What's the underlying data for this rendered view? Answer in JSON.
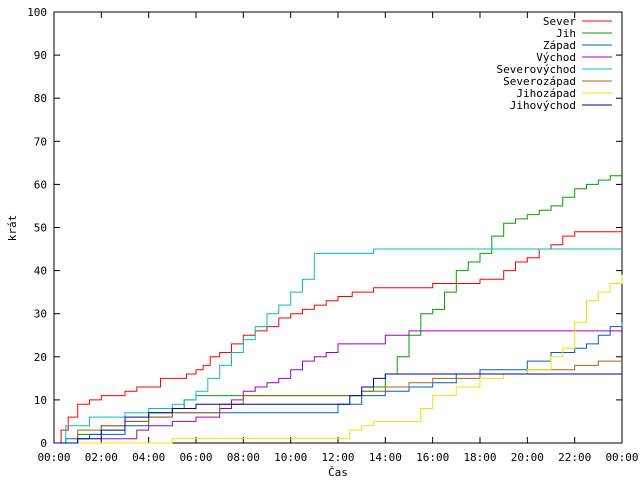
{
  "chart_data": {
    "type": "line",
    "title": "",
    "xlabel": "Čas",
    "ylabel": "krát",
    "xlim": [
      0,
      24
    ],
    "ylim": [
      0,
      100
    ],
    "x_ticks": [
      "00:00",
      "02:00",
      "04:00",
      "06:00",
      "08:00",
      "10:00",
      "12:00",
      "14:00",
      "16:00",
      "18:00",
      "20:00",
      "22:00",
      "00:00"
    ],
    "y_ticks": [
      0,
      10,
      20,
      30,
      40,
      50,
      60,
      70,
      80,
      90,
      100
    ],
    "grid": false,
    "legend_position": "top-right",
    "step": true,
    "series": [
      {
        "name": "Sever",
        "color": "#ff0000",
        "x": [
          0,
          0.3,
          0.6,
          1.0,
          1.5,
          2.0,
          3.0,
          3.5,
          4.5,
          5.0,
          5.6,
          6.0,
          6.3,
          6.6,
          7.0,
          7.5,
          8.0,
          8.5,
          9.0,
          9.5,
          10.0,
          10.5,
          11.0,
          11.5,
          12.0,
          12.6,
          13.5,
          15.0,
          16.0,
          17.0,
          18.0,
          19.0,
          19.5,
          20.0,
          20.5,
          21.0,
          21.5,
          22.0,
          24.0
        ],
        "y": [
          0,
          3,
          6,
          9,
          10,
          11,
          12,
          13,
          15,
          15,
          16,
          17,
          18,
          20,
          21,
          23,
          25,
          26,
          27,
          29,
          30,
          31,
          32,
          33,
          34,
          35,
          36,
          36,
          37,
          37,
          38,
          40,
          42,
          43,
          45,
          46,
          48,
          49,
          49
        ]
      },
      {
        "name": "Jih",
        "color": "#00a000",
        "x": [
          0,
          1.0,
          2.0,
          3.0,
          4.0,
          5.0,
          5.5,
          6.0,
          8.0,
          10.0,
          12.0,
          13.0,
          13.5,
          14.0,
          14.5,
          15.0,
          15.5,
          16.0,
          16.5,
          17.0,
          17.5,
          18.0,
          18.5,
          19.0,
          19.5,
          20.0,
          20.5,
          21.0,
          21.5,
          22.0,
          22.5,
          23.0,
          23.5,
          24.0
        ],
        "y": [
          0,
          2,
          4,
          5,
          7,
          8,
          10,
          11,
          11,
          11,
          11,
          12,
          13,
          16,
          20,
          25,
          30,
          31,
          35,
          40,
          42,
          44,
          48,
          51,
          52,
          53,
          54,
          55,
          57,
          59,
          60,
          61,
          62,
          62
        ]
      },
      {
        "name": "Západ",
        "color": "#0060c0",
        "x": [
          0,
          0.5,
          1.5,
          3.0,
          4.0,
          5.0,
          8.0,
          10.0,
          11.0,
          12.0,
          13.0,
          14.0,
          15.0,
          16.0,
          17.0,
          18.0,
          19.0,
          20.0,
          21.0,
          22.0,
          22.5,
          23.0,
          23.5,
          24.0
        ],
        "y": [
          0,
          1,
          2,
          4,
          6,
          7,
          7,
          7,
          7,
          9,
          11,
          12,
          13,
          14,
          16,
          17,
          17,
          19,
          21,
          22,
          23,
          25,
          27,
          28
        ]
      },
      {
        "name": "Východ",
        "color": "#a000c0",
        "x": [
          0,
          2.0,
          3.5,
          4.0,
          5.0,
          6.0,
          7.0,
          7.5,
          8.0,
          8.5,
          9.0,
          9.5,
          10.0,
          10.5,
          11.0,
          11.5,
          12.0,
          13.0,
          14.0,
          14.5,
          15.0,
          16.0,
          24.0
        ],
        "y": [
          0,
          1,
          3,
          4,
          5,
          6,
          8,
          10,
          12,
          13,
          14,
          15,
          17,
          19,
          20,
          21,
          23,
          23,
          25,
          25,
          26,
          26,
          26
        ]
      },
      {
        "name": "Severovýchod",
        "color": "#00c0c0",
        "x": [
          0,
          0.5,
          1.5,
          3.0,
          4.0,
          5.0,
          5.5,
          6.0,
          6.5,
          7.0,
          7.5,
          8.0,
          8.5,
          9.0,
          9.5,
          10.0,
          10.5,
          11.0,
          12.0,
          13.0,
          13.5,
          24.0
        ],
        "y": [
          0,
          4,
          6,
          7,
          8,
          9,
          10,
          12,
          15,
          18,
          21,
          24,
          27,
          30,
          32,
          35,
          38,
          44,
          44,
          44,
          45,
          45
        ]
      },
      {
        "name": "Severozápad",
        "color": "#b06010",
        "x": [
          0,
          1.0,
          2.0,
          3.0,
          4.0,
          5.0,
          7.0,
          8.0,
          12.0,
          13.0,
          14.0,
          15.0,
          16.0,
          17.0,
          18.0,
          19.0,
          20.0,
          21.0,
          22.0,
          23.0,
          24.0
        ],
        "y": [
          0,
          3,
          4,
          5,
          6,
          7,
          9,
          11,
          11,
          12,
          13,
          14,
          15,
          15,
          16,
          16,
          17,
          17,
          18,
          19,
          19
        ]
      },
      {
        "name": "Jihozápad",
        "color": "#e8e800",
        "x": [
          0,
          5.0,
          12.0,
          12.5,
          13.0,
          13.5,
          14.0,
          15.0,
          15.5,
          16.0,
          17.0,
          18.0,
          19.0,
          20.0,
          21.0,
          21.5,
          22.0,
          22.5,
          23.0,
          23.5,
          24.0
        ],
        "y": [
          0,
          1,
          1,
          3,
          4,
          5,
          5,
          5,
          8,
          11,
          13,
          15,
          16,
          17,
          20,
          22,
          28,
          33,
          35,
          37,
          39
        ]
      },
      {
        "name": "Jihovýchod",
        "color": "#0000b0",
        "x": [
          0,
          1.0,
          2.0,
          3.0,
          4.0,
          5.0,
          6.0,
          8.0,
          10.0,
          11.0,
          12.0,
          12.5,
          13.0,
          13.5,
          14.0,
          24.0
        ],
        "y": [
          0,
          1,
          3,
          6,
          7,
          8,
          9,
          9,
          9,
          9,
          9,
          11,
          13,
          15,
          16,
          16
        ]
      }
    ]
  }
}
